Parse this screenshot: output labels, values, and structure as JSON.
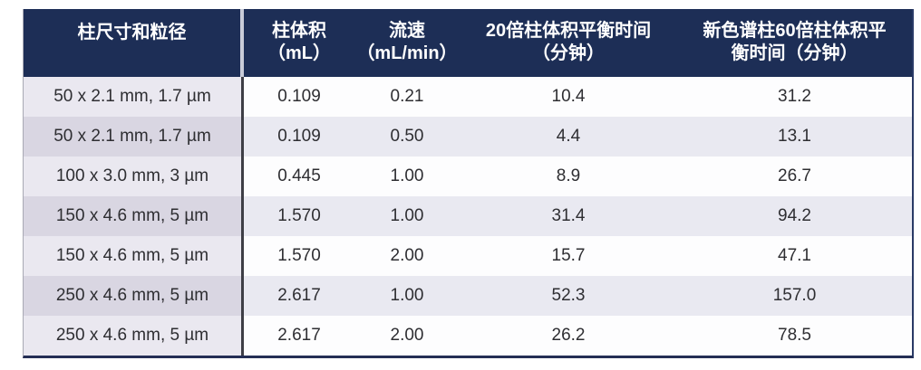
{
  "table": {
    "title_semantic": "column-equilibration-table",
    "headers": [
      {
        "line1": "柱尺寸和粒径",
        "line2": ""
      },
      {
        "line1": "柱体积",
        "line2": "（mL）"
      },
      {
        "line1": "流速",
        "line2": "（mL/min）"
      },
      {
        "line1": "20倍柱体积平衡时间",
        "line2": "（分钟）"
      },
      {
        "line1": "新色谱柱60倍柱体积平",
        "line2": "衡时间（分钟）"
      }
    ],
    "rows": [
      [
        "50 x 2.1 mm, 1.7 µm",
        "0.109",
        "0.21",
        "10.4",
        "31.2"
      ],
      [
        "50 x 2.1 mm, 1.7 µm",
        "0.109",
        "0.50",
        "4.4",
        "13.1"
      ],
      [
        "100 x 3.0 mm, 3 µm",
        "0.445",
        "1.00",
        "8.9",
        "26.7"
      ],
      [
        "150 x 4.6 mm, 5 µm",
        "1.570",
        "1.00",
        "31.4",
        "94.2"
      ],
      [
        "150 x 4.6 mm, 5 µm",
        "1.570",
        "2.00",
        "15.7",
        "47.1"
      ],
      [
        "250 x 4.6 mm, 5 µm",
        "2.617",
        "1.00",
        "52.3",
        "157.0"
      ],
      [
        "250 x 4.6 mm, 5 µm",
        "2.617",
        "2.00",
        "26.2",
        "78.5"
      ]
    ]
  },
  "colors": {
    "header_bg": "#1d2e56",
    "header_text": "#ffffff",
    "col1_stripe_light": "#eae8f0",
    "col1_stripe_dark": "#d9d6e2",
    "data_stripe_light": "#fdfdfe",
    "data_stripe_dark": "#e9e9f1",
    "body_text": "#2e2e32",
    "divider_dark": "#3e3e46",
    "outer_border": "#242e55"
  }
}
